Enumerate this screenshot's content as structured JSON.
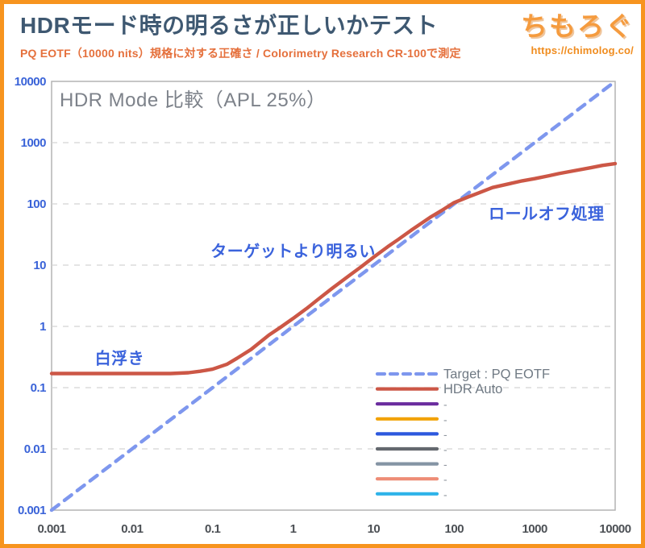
{
  "page": {
    "border_color": "#f7941e",
    "background": "#ffffff"
  },
  "header": {
    "title": "HDRモード時の明るさが正しいかテスト",
    "subtitle": "PQ EOTF（10000 nits）規格に対する正確さ / Colorimetry Research CR-100で測定",
    "title_color": "#3e5871",
    "subtitle_color": "#e5703c"
  },
  "logo": {
    "name": "ちもろぐ",
    "url": "https://chimolog.co/",
    "color": "#f59b3e"
  },
  "chart_data": {
    "type": "line",
    "title": "HDR Mode 比較（APL 25%）",
    "title_color": "#7d828a",
    "x_scale": "log",
    "y_scale": "log",
    "xlim": [
      0.001,
      10000
    ],
    "ylim": [
      0.001,
      10000
    ],
    "x_ticks": [
      0.001,
      0.01,
      0.1,
      1,
      10,
      100,
      1000,
      10000
    ],
    "x_tick_labels": [
      "0.001",
      "0.01",
      "0.1",
      "1",
      "10",
      "100",
      "1000",
      "10000"
    ],
    "y_ticks": [
      10000,
      1000,
      100,
      10,
      1,
      0.1,
      0.01,
      0.001
    ],
    "y_tick_labels": [
      "10000",
      "1000",
      "100",
      "10",
      "1",
      "0.1",
      "0.01",
      "0.001"
    ],
    "x_tick_color": "#4c5055",
    "y_tick_color": "#3a63d8",
    "grid": "horizontal-dashed",
    "grid_color": "#d4d4d4",
    "plot_border_color": "#b3b3b3",
    "legend_position": "lower-right-inside",
    "series": [
      {
        "name": "Target : PQ EOTF",
        "style": "dashed",
        "color": "#7e97ee",
        "x": [
          0.001,
          10000
        ],
        "y": [
          0.001,
          10000
        ]
      },
      {
        "name": "HDR Auto",
        "style": "solid",
        "color": "#cc5746",
        "x": [
          0.001,
          0.002,
          0.005,
          0.01,
          0.02,
          0.03,
          0.05,
          0.07,
          0.1,
          0.15,
          0.2,
          0.3,
          0.5,
          0.7,
          1,
          1.5,
          2,
          3,
          5,
          7,
          10,
          15,
          20,
          30,
          50,
          70,
          100,
          150,
          200,
          300,
          500,
          700,
          1000,
          1500,
          2000,
          3000,
          5000,
          7000,
          10000
        ],
        "y": [
          0.17,
          0.17,
          0.17,
          0.17,
          0.17,
          0.17,
          0.175,
          0.185,
          0.2,
          0.24,
          0.3,
          0.42,
          0.72,
          0.97,
          1.35,
          2.0,
          2.7,
          4.1,
          6.8,
          9.4,
          13.5,
          20,
          26,
          38,
          60,
          78,
          105,
          130,
          150,
          185,
          215,
          238,
          258,
          288,
          312,
          345,
          390,
          425,
          455
        ]
      }
    ],
    "legend_extra": [
      {
        "label": "-",
        "color": "#6a2c9e"
      },
      {
        "label": "-",
        "color": "#f2a202"
      },
      {
        "label": "-",
        "color": "#2c58de"
      },
      {
        "label": "-",
        "color": "#64686e"
      },
      {
        "label": "-",
        "color": "#8494a4"
      },
      {
        "label": "-",
        "color": "#ee8c76"
      },
      {
        "label": "-",
        "color": "#2eb3e9"
      }
    ],
    "legend_text_color": "#707a84",
    "annotations": [
      {
        "text": "白浮き",
        "x": 0.007,
        "y": 0.3,
        "color": "#3b63dc"
      },
      {
        "text": "ターゲットより明るい",
        "x": 1.0,
        "y": 17,
        "color": "#3b63dc"
      },
      {
        "text": "ロールオフ処理",
        "x": 1400,
        "y": 70,
        "color": "#3b63dc"
      }
    ]
  }
}
